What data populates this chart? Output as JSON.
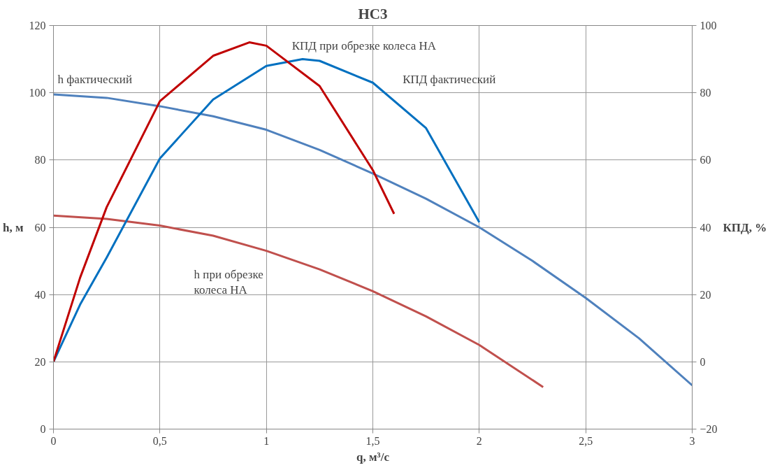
{
  "chart_data": {
    "type": "line",
    "title": "НС3",
    "xlabel": "q, м³/с",
    "ylabel": "h, м",
    "y2label": "КПД, %",
    "xlim": [
      0,
      3
    ],
    "xticks": [
      0,
      {
        "value": 0.5,
        "label": "0,5"
      },
      1,
      {
        "value": 1.5,
        "label": "1,5"
      },
      2,
      {
        "value": 2.5,
        "label": "2,5"
      },
      3
    ],
    "ylim": [
      0,
      120
    ],
    "yticks": [
      0,
      20,
      40,
      60,
      80,
      100,
      120
    ],
    "y2lim": [
      -20,
      100
    ],
    "y2ticks": [
      -20,
      0,
      20,
      40,
      60,
      80,
      100
    ],
    "grid": true,
    "line_style": "solid",
    "series": [
      {
        "color": "#4f81bd",
        "x": [
          0,
          0.25,
          0.5,
          0.75,
          1,
          1.25,
          1.5,
          1.75,
          2,
          2.25,
          2.5,
          2.75,
          3
        ],
        "values": [
          99.5,
          98.5,
          96,
          93,
          89,
          83,
          76,
          68.5,
          60,
          50,
          39,
          27,
          13
        ]
      },
      {
        "color": "#c0504d",
        "x": [
          0,
          0.25,
          0.5,
          0.75,
          1,
          1.25,
          1.5,
          1.75,
          2,
          2.3
        ],
        "values": [
          63.5,
          62.5,
          60.5,
          57.5,
          53,
          47.5,
          41,
          33.5,
          25,
          12.5
        ]
      },
      {
        "color": "#0070c0",
        "axis": "y2",
        "x": [
          0,
          0.125,
          0.25,
          0.5,
          0.75,
          1,
          1.17,
          1.25,
          1.5,
          1.75,
          2
        ],
        "values": [
          0,
          17,
          31,
          60.5,
          78,
          88,
          90,
          89.5,
          83,
          69.5,
          41.5
        ]
      },
      {
        "color": "#c00000",
        "axis": "y2",
        "x": [
          0,
          0.125,
          0.25,
          0.5,
          0.75,
          0.92,
          1,
          1.25,
          1.5,
          1.6
        ],
        "values": [
          0,
          25,
          46,
          77.5,
          91,
          95,
          94,
          82,
          57,
          44
        ]
      }
    ],
    "annotations": [
      "h фактический",
      "КПД при обрезке колеса НА",
      "КПД фактический",
      "h при обрезке\nколеса НА"
    ]
  }
}
